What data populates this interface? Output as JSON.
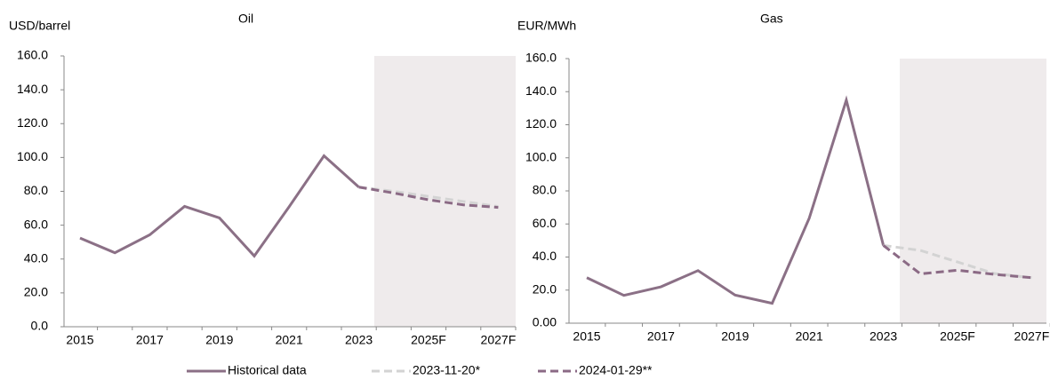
{
  "chart_data": [
    {
      "type": "line",
      "title": "Oil",
      "y_label": "USD/barrel",
      "categories": [
        "2015",
        null,
        "2017",
        null,
        "2019",
        null,
        "2021",
        null,
        "2023",
        null,
        "2025F",
        null,
        "2027F"
      ],
      "series": [
        {
          "name": "Historical data",
          "color": "#8b7086",
          "dash": false,
          "values": [
            52.4,
            43.7,
            54.3,
            71.1,
            64.3,
            41.8,
            70.9,
            101.0,
            82.5,
            null,
            null,
            null,
            null
          ]
        },
        {
          "name": "2023-11-20*",
          "color": "#d3d3d3",
          "dash": true,
          "values": [
            null,
            null,
            null,
            null,
            null,
            null,
            null,
            null,
            82.5,
            80.0,
            77.0,
            74.0,
            71.0
          ]
        },
        {
          "name": "2024-01-29**",
          "color": "#8b6a85",
          "dash": true,
          "values": [
            null,
            null,
            null,
            null,
            null,
            null,
            null,
            null,
            82.5,
            79.0,
            75.0,
            72.0,
            70.5
          ]
        }
      ],
      "ylim": [
        0,
        160
      ],
      "yticks": [
        {
          "value": 0,
          "label": "0.0"
        },
        {
          "value": 20,
          "label": "20.0"
        },
        {
          "value": 40,
          "label": "40.0"
        },
        {
          "value": 60,
          "label": "60.0"
        },
        {
          "value": 80,
          "label": "80.0"
        },
        {
          "value": 100,
          "label": "100.0"
        },
        {
          "value": 120,
          "label": "120.0"
        },
        {
          "value": 140,
          "label": "140.0"
        },
        {
          "value": 160,
          "label": "160.0"
        }
      ]
    },
    {
      "type": "line",
      "title": "Gas",
      "y_label": "EUR/MWh",
      "categories": [
        "2015",
        null,
        "2017",
        null,
        "2019",
        null,
        "2021",
        null,
        "2023",
        null,
        "2025F",
        null,
        "2027F"
      ],
      "series": [
        {
          "color": "#8b7086",
          "dash": false,
          "values": [
            27.5,
            16.8,
            22.0,
            31.8,
            17.0,
            12.0,
            63.5,
            134.9,
            47.0,
            null,
            null,
            null,
            null
          ]
        },
        {
          "color": "#d3d3d3",
          "dash": true,
          "values": [
            null,
            null,
            null,
            null,
            null,
            null,
            null,
            null,
            47.0,
            44.0,
            37.0,
            30.0,
            27.5
          ]
        },
        {
          "color": "#8b6a85",
          "dash": true,
          "values": [
            null,
            null,
            null,
            null,
            null,
            null,
            null,
            null,
            47.0,
            29.8,
            32.0,
            29.5,
            27.5
          ]
        }
      ],
      "ylim": [
        0,
        160
      ],
      "yticks": [
        {
          "value": 0,
          "label": "0.00"
        },
        {
          "value": 20,
          "label": "20.0"
        },
        {
          "value": 40,
          "label": "40.0"
        },
        {
          "value": 60,
          "label": "60.0"
        },
        {
          "value": 80,
          "label": "80.0"
        },
        {
          "value": 100,
          "label": "100.0"
        },
        {
          "value": 120,
          "label": "120.0"
        },
        {
          "value": 140,
          "label": "140.0"
        },
        {
          "value": 160,
          "label": "160.0"
        }
      ]
    }
  ]
}
